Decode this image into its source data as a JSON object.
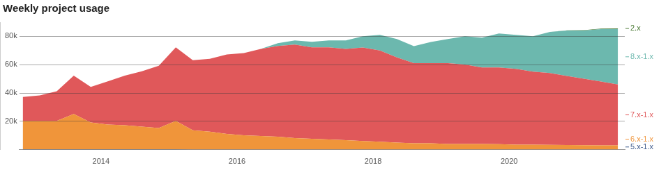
{
  "chart_data": {
    "type": "area",
    "title": "Weekly project usage",
    "stacked": true,
    "grid": true,
    "x": [
      2012.85,
      2013.1,
      2013.35,
      2013.6,
      2013.85,
      2014.1,
      2014.35,
      2014.6,
      2014.85,
      2015.1,
      2015.35,
      2015.6,
      2015.85,
      2016.1,
      2016.35,
      2016.6,
      2016.85,
      2017.1,
      2017.35,
      2017.6,
      2017.85,
      2018.1,
      2018.35,
      2018.6,
      2018.85,
      2019.1,
      2019.35,
      2019.6,
      2019.85,
      2020.1,
      2020.35,
      2020.6,
      2020.85,
      2021.1,
      2021.35,
      2021.6
    ],
    "xlim": [
      2012.8,
      2021.7
    ],
    "xticks": [
      2014,
      2016,
      2018,
      2020
    ],
    "ylim": [
      0,
      90000
    ],
    "yticks": [
      {
        "value": 20000,
        "label": "20k"
      },
      {
        "value": 40000,
        "label": "40k"
      },
      {
        "value": 60000,
        "label": "60k"
      },
      {
        "value": 80000,
        "label": "80k"
      }
    ],
    "series": [
      {
        "name": "5.x-1.x",
        "color": "#3d5a8c",
        "values": [
          300,
          300,
          300,
          300,
          300,
          300,
          300,
          300,
          300,
          300,
          200,
          200,
          200,
          200,
          200,
          200,
          200,
          200,
          200,
          200,
          100,
          100,
          100,
          100,
          100,
          100,
          100,
          100,
          100,
          100,
          100,
          100,
          100,
          100,
          100,
          100
        ]
      },
      {
        "name": "6.x-1.x",
        "color": "#f0953a",
        "values": [
          20000,
          20000,
          20000,
          25000,
          19000,
          17500,
          17000,
          16000,
          15000,
          20000,
          13500,
          12500,
          11000,
          10000,
          9500,
          9000,
          8000,
          7500,
          7000,
          6500,
          6000,
          5500,
          5000,
          4500,
          4500,
          4000,
          4000,
          4000,
          3800,
          3500,
          3500,
          3300,
          3200,
          3100,
          3000,
          3000
        ]
      },
      {
        "name": "7.x-1.x",
        "color": "#e0585a",
        "values": [
          17000,
          18000,
          21000,
          27000,
          25000,
          30500,
          35000,
          39000,
          44000,
          52000,
          49500,
          51500,
          56000,
          58000,
          61500,
          64000,
          66000,
          64500,
          65000,
          64500,
          66000,
          64500,
          60000,
          56500,
          56500,
          57000,
          56000,
          54000,
          54200,
          53500,
          51500,
          50700,
          48800,
          46900,
          45000,
          43000
        ]
      },
      {
        "name": "8.x-1.x",
        "color": "#6cb8ae",
        "values": [
          0,
          0,
          0,
          0,
          0,
          0,
          0,
          0,
          0,
          0,
          0,
          0,
          0,
          0,
          0,
          2000,
          3000,
          4000,
          5000,
          6000,
          8000,
          11000,
          13000,
          12000,
          15000,
          17000,
          20000,
          21000,
          24000,
          24000,
          25000,
          29000,
          32000,
          34000,
          37000,
          39000
        ]
      },
      {
        "name": "2.x",
        "color": "#4a7a35",
        "values": [
          0,
          0,
          0,
          0,
          0,
          0,
          0,
          0,
          0,
          0,
          0,
          0,
          0,
          0,
          0,
          0,
          0,
          0,
          0,
          0,
          0,
          0,
          0,
          0,
          0,
          0,
          0,
          0,
          0,
          0,
          0,
          100,
          200,
          300,
          400,
          500
        ]
      }
    ]
  }
}
